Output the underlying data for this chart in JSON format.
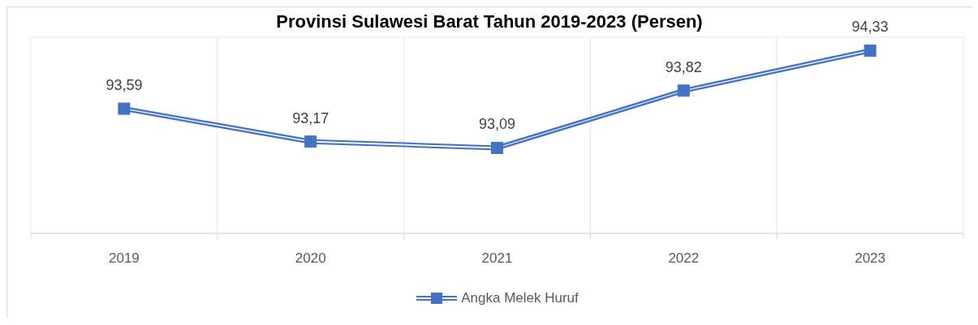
{
  "chart_data": {
    "type": "line",
    "title": "Provinsi Sulawesi Barat Tahun 2019-2023 (Persen)",
    "categories": [
      "2019",
      "2020",
      "2021",
      "2022",
      "2023"
    ],
    "series": [
      {
        "name": "Angka Melek Huruf",
        "color": "#4472c4",
        "values": [
          93.59,
          93.17,
          93.09,
          93.82,
          94.33
        ],
        "value_labels": [
          "93,59",
          "93,17",
          "93,09",
          "93,82",
          "94,33"
        ]
      }
    ],
    "ylim": [
      92,
      94.5
    ],
    "grid": true,
    "legend": "bottom",
    "tick_labels": "x",
    "marker": "square"
  }
}
